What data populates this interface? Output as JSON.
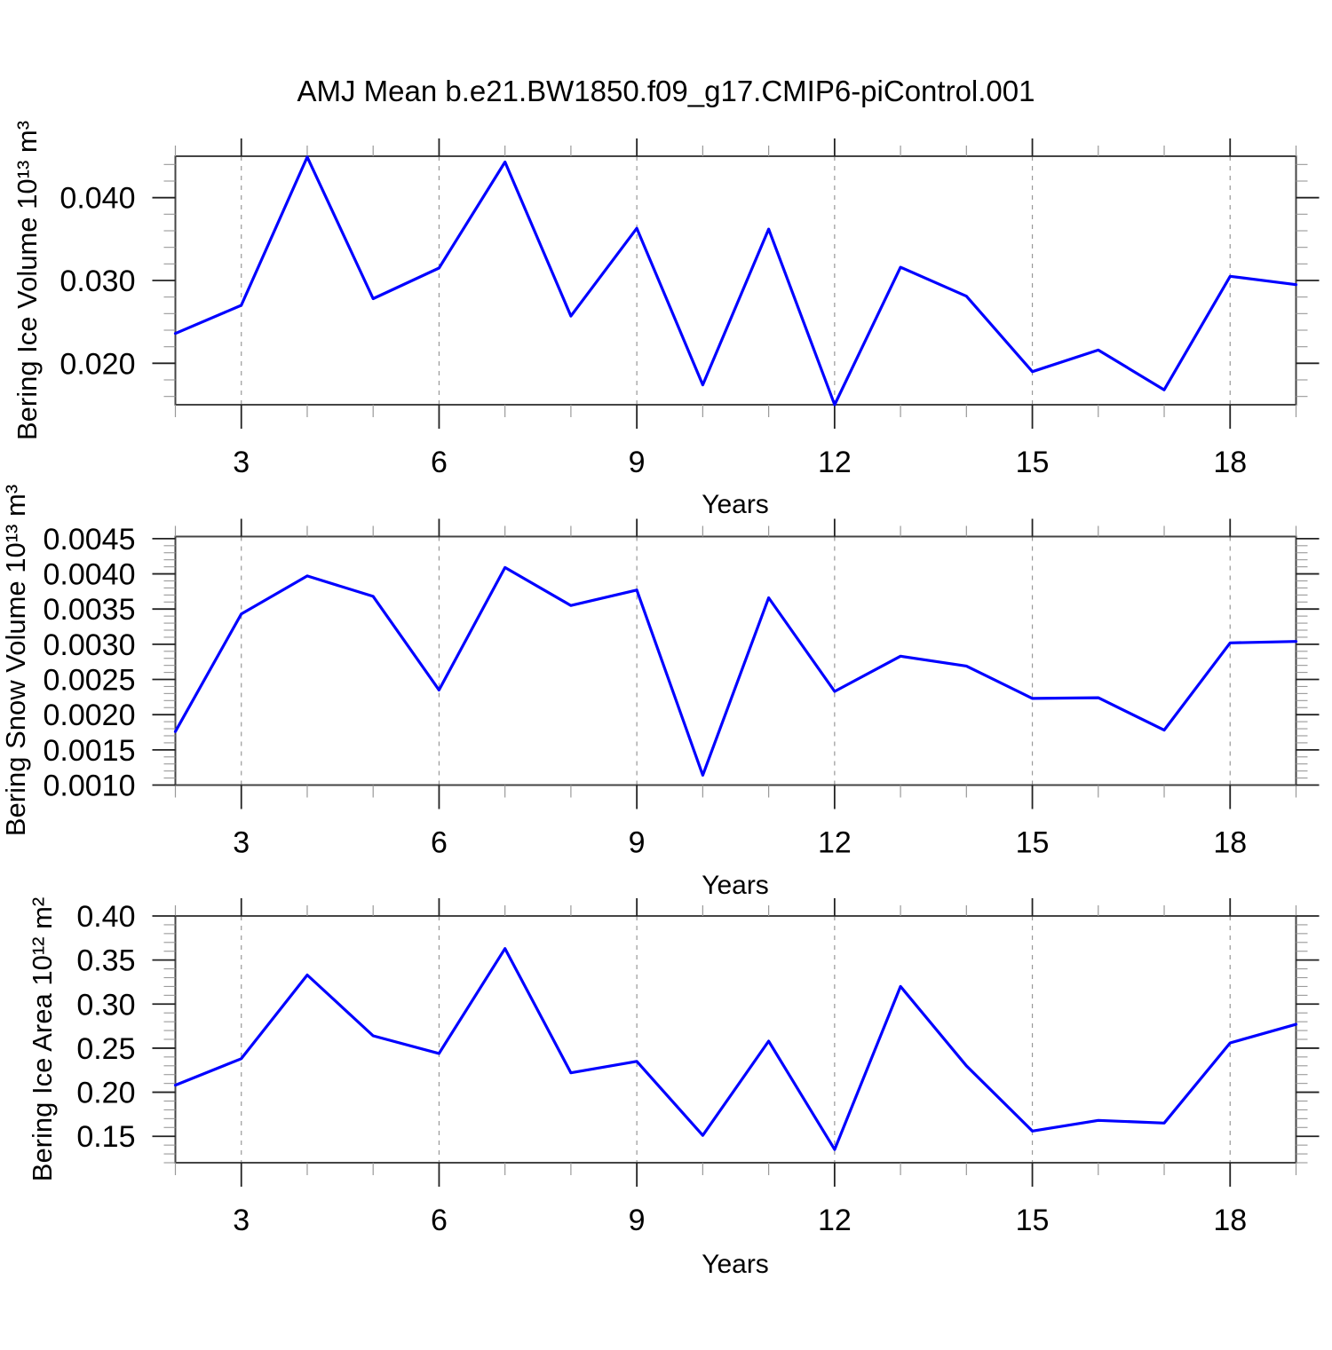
{
  "title": "AMJ Mean b.e21.BW1850.f09_g17.CMIP6-piControl.001",
  "colors": {
    "line": "#0000ff",
    "grid": "#999999",
    "frame": "#444444",
    "tick_major": "#222222",
    "tick_minor": "#999999",
    "text": "#000000"
  },
  "chart_data": [
    {
      "type": "line",
      "name": "bering-ice-volume",
      "ylabel": "Bering Ice Volume 10¹³ m³",
      "xlabel": "Years",
      "x": [
        2,
        3,
        4,
        5,
        6,
        7,
        8,
        9,
        10,
        11,
        12,
        13,
        14,
        15,
        16,
        17,
        18,
        19
      ],
      "values": [
        0.0236,
        0.027,
        0.0449,
        0.0278,
        0.0315,
        0.0443,
        0.0257,
        0.0363,
        0.0174,
        0.0362,
        0.015,
        0.0316,
        0.0281,
        0.019,
        0.0216,
        0.0168,
        0.0305,
        0.0295
      ],
      "xlim": [
        2,
        19
      ],
      "ylim": [
        0.015,
        0.045
      ],
      "xtick_major": [
        3,
        6,
        9,
        12,
        15,
        18
      ],
      "xtick_labels": [
        "3",
        "6",
        "9",
        "12",
        "15",
        "18"
      ],
      "ytick_values": [
        0.02,
        0.03,
        0.04
      ],
      "ytick_labels": [
        "0.020",
        "0.030",
        "0.040"
      ],
      "y_minor_step": 0.002,
      "grid": "vertical dashed at major x ticks",
      "legend": "none"
    },
    {
      "type": "line",
      "name": "bering-snow-volume",
      "ylabel": "Bering Snow Volume 10¹³ m³",
      "xlabel": "Years",
      "x": [
        2,
        3,
        4,
        5,
        6,
        7,
        8,
        9,
        10,
        11,
        12,
        13,
        14,
        15,
        16,
        17,
        18,
        19
      ],
      "values": [
        0.00176,
        0.00343,
        0.00397,
        0.00368,
        0.00235,
        0.00409,
        0.00355,
        0.00377,
        0.00114,
        0.00366,
        0.00233,
        0.00283,
        0.00269,
        0.00223,
        0.00224,
        0.00178,
        0.00302,
        0.00304
      ],
      "xlim": [
        2,
        19
      ],
      "ylim": [
        0.001,
        0.00453
      ],
      "xtick_major": [
        3,
        6,
        9,
        12,
        15,
        18
      ],
      "xtick_labels": [
        "3",
        "6",
        "9",
        "12",
        "15",
        "18"
      ],
      "ytick_values": [
        0.001,
        0.0015,
        0.002,
        0.0025,
        0.003,
        0.0035,
        0.004,
        0.0045
      ],
      "ytick_labels": [
        "0.0010",
        "0.0015",
        "0.0020",
        "0.0025",
        "0.0030",
        "0.0035",
        "0.0040",
        "0.0045"
      ],
      "y_minor_step": 0.0001,
      "grid": "vertical dashed at major x ticks",
      "legend": "none"
    },
    {
      "type": "line",
      "name": "bering-ice-area",
      "ylabel": "Bering Ice Area 10¹² m²",
      "xlabel": "Years",
      "x": [
        2,
        3,
        4,
        5,
        6,
        7,
        8,
        9,
        10,
        11,
        12,
        13,
        14,
        15,
        16,
        17,
        18,
        19
      ],
      "values": [
        0.208,
        0.238,
        0.333,
        0.264,
        0.244,
        0.363,
        0.222,
        0.235,
        0.151,
        0.258,
        0.135,
        0.32,
        0.23,
        0.156,
        0.168,
        0.165,
        0.256,
        0.277
      ],
      "xlim": [
        2,
        19
      ],
      "ylim": [
        0.12,
        0.4
      ],
      "xtick_major": [
        3,
        6,
        9,
        12,
        15,
        18
      ],
      "xtick_labels": [
        "3",
        "6",
        "9",
        "12",
        "15",
        "18"
      ],
      "ytick_values": [
        0.15,
        0.2,
        0.25,
        0.3,
        0.35,
        0.4
      ],
      "ytick_labels": [
        "0.15",
        "0.20",
        "0.25",
        "0.30",
        "0.35",
        "0.40"
      ],
      "y_minor_step": 0.01,
      "grid": "vertical dashed at major x ticks",
      "legend": "none"
    }
  ]
}
